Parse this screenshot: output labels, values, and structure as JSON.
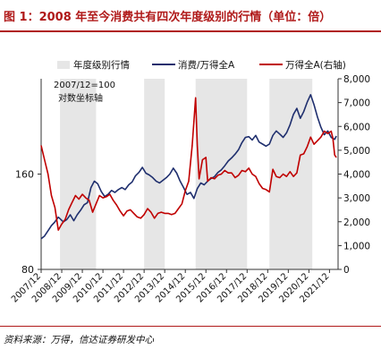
{
  "figure": {
    "title": "图 1：2008 年至今消费共有四次年度级别的行情（单位：倍）",
    "source": "资料来源：万得，信达证券研发中心"
  },
  "chart_data": {
    "type": "line",
    "annotation": [
      "2007/12=100",
      "对数坐标轴"
    ],
    "legend": [
      "年度级别行情",
      "消费/万得全A",
      "万得全A(右轴)"
    ],
    "legend_placement": "top",
    "x_ticks": [
      "2007/12",
      "2008/12",
      "2009/12",
      "2010/12",
      "2011/12",
      "2012/12",
      "2013/12",
      "2014/12",
      "2015/12",
      "2016/12",
      "2017/12",
      "2018/12",
      "2019/12",
      "2020/12",
      "2021/12"
    ],
    "y_left": {
      "scale": "log",
      "ylim": [
        80,
        320
      ],
      "ticks": [
        "80",
        "160"
      ]
    },
    "y_right": {
      "ylim": [
        0,
        8000
      ],
      "ticks": [
        "0",
        "1,000",
        "2,000",
        "3,000",
        "4,000",
        "5,000",
        "6,000",
        "7,000",
        "8,000"
      ]
    },
    "shaded_periods": [
      [
        "2008/11",
        "2010/08"
      ],
      [
        "2012/12",
        "2013/12"
      ],
      [
        "2015/06",
        "2017/12"
      ],
      [
        "2019/01",
        "2021/02"
      ]
    ],
    "series": [
      {
        "name": "消费/万得全A",
        "axis": "left",
        "color": "#1f2f6e",
        "points": [
          [
            "2007/12",
            100
          ],
          [
            "2008/02",
            102
          ],
          [
            "2008/04",
            106
          ],
          [
            "2008/06",
            110
          ],
          [
            "2008/08",
            113
          ],
          [
            "2008/10",
            117
          ],
          [
            "2009/01",
            113
          ],
          [
            "2009/03",
            115
          ],
          [
            "2009/05",
            119
          ],
          [
            "2009/07",
            114
          ],
          [
            "2009/09",
            119
          ],
          [
            "2009/11",
            123
          ],
          [
            "2010/01",
            128
          ],
          [
            "2010/03",
            130
          ],
          [
            "2010/05",
            145
          ],
          [
            "2010/07",
            152
          ],
          [
            "2010/09",
            149
          ],
          [
            "2010/11",
            141
          ],
          [
            "2011/01",
            136
          ],
          [
            "2011/03",
            138
          ],
          [
            "2011/05",
            142
          ],
          [
            "2011/07",
            140
          ],
          [
            "2011/09",
            143
          ],
          [
            "2011/11",
            145
          ],
          [
            "2012/01",
            143
          ],
          [
            "2012/03",
            148
          ],
          [
            "2012/05",
            151
          ],
          [
            "2012/07",
            158
          ],
          [
            "2012/09",
            162
          ],
          [
            "2012/11",
            168
          ],
          [
            "2013/01",
            161
          ],
          [
            "2013/03",
            159
          ],
          [
            "2013/05",
            156
          ],
          [
            "2013/07",
            152
          ],
          [
            "2013/09",
            150
          ],
          [
            "2013/11",
            153
          ],
          [
            "2014/01",
            156
          ],
          [
            "2014/03",
            160
          ],
          [
            "2014/05",
            167
          ],
          [
            "2014/07",
            161
          ],
          [
            "2014/09",
            152
          ],
          [
            "2014/11",
            145
          ],
          [
            "2015/01",
            138
          ],
          [
            "2015/03",
            140
          ],
          [
            "2015/05",
            134
          ],
          [
            "2015/07",
            144
          ],
          [
            "2015/09",
            150
          ],
          [
            "2015/11",
            148
          ],
          [
            "2016/01",
            152
          ],
          [
            "2016/03",
            155
          ],
          [
            "2016/05",
            157
          ],
          [
            "2016/07",
            162
          ],
          [
            "2016/09",
            165
          ],
          [
            "2016/11",
            170
          ],
          [
            "2017/01",
            176
          ],
          [
            "2017/03",
            180
          ],
          [
            "2017/05",
            185
          ],
          [
            "2017/07",
            191
          ],
          [
            "2017/09",
            201
          ],
          [
            "2017/11",
            209
          ],
          [
            "2018/01",
            210
          ],
          [
            "2018/03",
            205
          ],
          [
            "2018/05",
            212
          ],
          [
            "2018/07",
            202
          ],
          [
            "2018/09",
            199
          ],
          [
            "2018/11",
            196
          ],
          [
            "2019/01",
            199
          ],
          [
            "2019/03",
            212
          ],
          [
            "2019/05",
            219
          ],
          [
            "2019/07",
            214
          ],
          [
            "2019/09",
            209
          ],
          [
            "2019/11",
            216
          ],
          [
            "2020/01",
            229
          ],
          [
            "2020/03",
            247
          ],
          [
            "2020/05",
            258
          ],
          [
            "2020/07",
            240
          ],
          [
            "2020/09",
            252
          ],
          [
            "2020/11",
            270
          ],
          [
            "2021/01",
            285
          ],
          [
            "2021/03",
            265
          ],
          [
            "2021/05",
            242
          ],
          [
            "2021/07",
            225
          ],
          [
            "2021/09",
            213
          ],
          [
            "2021/11",
            219
          ],
          [
            "2022/01",
            209
          ],
          [
            "2022/03",
            206
          ],
          [
            "2022/04",
            211
          ]
        ]
      },
      {
        "name": "万得全A(右轴)",
        "axis": "right",
        "color": "#c00000",
        "points": [
          [
            "2007/12",
            5200
          ],
          [
            "2008/02",
            4600
          ],
          [
            "2008/04",
            4000
          ],
          [
            "2008/06",
            3100
          ],
          [
            "2008/08",
            2600
          ],
          [
            "2008/10",
            1650
          ],
          [
            "2008/12",
            1900
          ],
          [
            "2009/02",
            2100
          ],
          [
            "2009/04",
            2500
          ],
          [
            "2009/06",
            2800
          ],
          [
            "2009/08",
            3100
          ],
          [
            "2009/10",
            2950
          ],
          [
            "2009/12",
            3150
          ],
          [
            "2010/02",
            3000
          ],
          [
            "2010/04",
            2900
          ],
          [
            "2010/06",
            2400
          ],
          [
            "2010/08",
            2750
          ],
          [
            "2010/10",
            3100
          ],
          [
            "2010/12",
            3000
          ],
          [
            "2011/02",
            3050
          ],
          [
            "2011/04",
            3150
          ],
          [
            "2011/06",
            2900
          ],
          [
            "2011/08",
            2700
          ],
          [
            "2011/10",
            2450
          ],
          [
            "2011/12",
            2250
          ],
          [
            "2012/02",
            2450
          ],
          [
            "2012/04",
            2500
          ],
          [
            "2012/06",
            2350
          ],
          [
            "2012/08",
            2200
          ],
          [
            "2012/10",
            2150
          ],
          [
            "2012/12",
            2300
          ],
          [
            "2013/02",
            2550
          ],
          [
            "2013/04",
            2400
          ],
          [
            "2013/06",
            2150
          ],
          [
            "2013/08",
            2350
          ],
          [
            "2013/10",
            2400
          ],
          [
            "2013/12",
            2350
          ],
          [
            "2014/02",
            2350
          ],
          [
            "2014/04",
            2300
          ],
          [
            "2014/06",
            2350
          ],
          [
            "2014/08",
            2550
          ],
          [
            "2014/10",
            2750
          ],
          [
            "2014/12",
            3300
          ],
          [
            "2015/02",
            3700
          ],
          [
            "2015/04",
            5200
          ],
          [
            "2015/05",
            6200
          ],
          [
            "2015/06",
            7200
          ],
          [
            "2015/07",
            5200
          ],
          [
            "2015/08",
            3800
          ],
          [
            "2015/10",
            4600
          ],
          [
            "2015/12",
            4700
          ],
          [
            "2016/01",
            3700
          ],
          [
            "2016/03",
            3850
          ],
          [
            "2016/05",
            3800
          ],
          [
            "2016/07",
            3950
          ],
          [
            "2016/09",
            4000
          ],
          [
            "2016/11",
            4150
          ],
          [
            "2017/01",
            4050
          ],
          [
            "2017/03",
            4050
          ],
          [
            "2017/05",
            3850
          ],
          [
            "2017/07",
            3950
          ],
          [
            "2017/09",
            4150
          ],
          [
            "2017/11",
            4100
          ],
          [
            "2018/01",
            4250
          ],
          [
            "2018/03",
            4000
          ],
          [
            "2018/05",
            3900
          ],
          [
            "2018/07",
            3600
          ],
          [
            "2018/09",
            3400
          ],
          [
            "2018/11",
            3350
          ],
          [
            "2019/01",
            3250
          ],
          [
            "2019/03",
            4200
          ],
          [
            "2019/05",
            3900
          ],
          [
            "2019/07",
            3850
          ],
          [
            "2019/09",
            4000
          ],
          [
            "2019/11",
            3900
          ],
          [
            "2020/01",
            4100
          ],
          [
            "2020/03",
            3900
          ],
          [
            "2020/05",
            4050
          ],
          [
            "2020/07",
            4800
          ],
          [
            "2020/09",
            4850
          ],
          [
            "2020/11",
            5150
          ],
          [
            "2021/01",
            5550
          ],
          [
            "2021/03",
            5250
          ],
          [
            "2021/05",
            5400
          ],
          [
            "2021/07",
            5550
          ],
          [
            "2021/09",
            5800
          ],
          [
            "2021/11",
            5700
          ],
          [
            "2022/01",
            5800
          ],
          [
            "2022/02",
            5500
          ],
          [
            "2022/03",
            4800
          ],
          [
            "2022/04",
            4700
          ]
        ]
      }
    ]
  }
}
